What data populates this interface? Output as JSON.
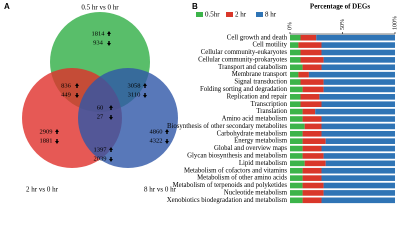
{
  "panel_a": {
    "label": "A",
    "sets": [
      {
        "name": "0.5 hr vs 0 hr",
        "color": "#2fae45"
      },
      {
        "name": "2 hr vs 0 hr",
        "color": "#e0302b"
      },
      {
        "name": "8 hr vs 0 hr",
        "color": "#2e56a8"
      }
    ],
    "regions": [
      {
        "up": 1814,
        "down": 934
      },
      {
        "up": 836,
        "down": 449
      },
      {
        "up": 3058,
        "down": 3110
      },
      {
        "up": 60,
        "down": 27
      },
      {
        "up": 1397,
        "down": 2039
      },
      {
        "up": 2909,
        "down": 1881
      },
      {
        "up": 4860,
        "down": 4322
      }
    ]
  },
  "chart_data": {
    "type": "stacked-barh",
    "panel_label": "B",
    "title": "Percentage of DEGs",
    "categories": [
      "Cell growth and death",
      "Cell motility",
      "Cellular community-eukaryotes",
      "Cellular community-prokaryotes",
      "Transport and catabolism",
      "Membrane transport",
      "Signal transduction",
      "Folding sorting and degradation",
      "Replication and repair",
      "Transcription",
      "Translation",
      "Amino acid metabolism",
      "Biosynthesis of other secondary metabolites",
      "Carbohydrate metabolism",
      "Energy metabolism",
      "Global and overview maps",
      "Glycan biosynthesis and metabolism",
      "Lipid metabolism",
      "Metabolism of cofactors and vitamins",
      "Metabolism of other amino acids",
      "Metabolism of terpenoids and polyketides",
      "Nucleotide metabolism",
      "Xenobiotics biodegradation and metabolism"
    ],
    "series": [
      {
        "name": "0.5hr",
        "color": "#3cb44a",
        "values": [
          10,
          8,
          10,
          10,
          12,
          8,
          10,
          12,
          10,
          10,
          12,
          12,
          14,
          12,
          12,
          12,
          12,
          14,
          12,
          12,
          12,
          12,
          12
        ]
      },
      {
        "name": "2 hr",
        "color": "#d9372a",
        "values": [
          15,
          22,
          20,
          22,
          18,
          10,
          22,
          20,
          18,
          20,
          12,
          18,
          16,
          18,
          22,
          18,
          20,
          20,
          18,
          18,
          20,
          20,
          18
        ]
      },
      {
        "name": "8 hr",
        "color": "#2f74b5",
        "values": [
          75,
          70,
          70,
          68,
          70,
          82,
          68,
          68,
          72,
          70,
          76,
          70,
          70,
          70,
          66,
          70,
          68,
          66,
          70,
          70,
          68,
          68,
          70
        ]
      }
    ],
    "xlim": [
      0,
      100
    ],
    "xticks": [
      {
        "value": 0,
        "label": "0%"
      },
      {
        "value": 50,
        "label": "50%"
      },
      {
        "value": 100,
        "label": "100%"
      }
    ]
  }
}
